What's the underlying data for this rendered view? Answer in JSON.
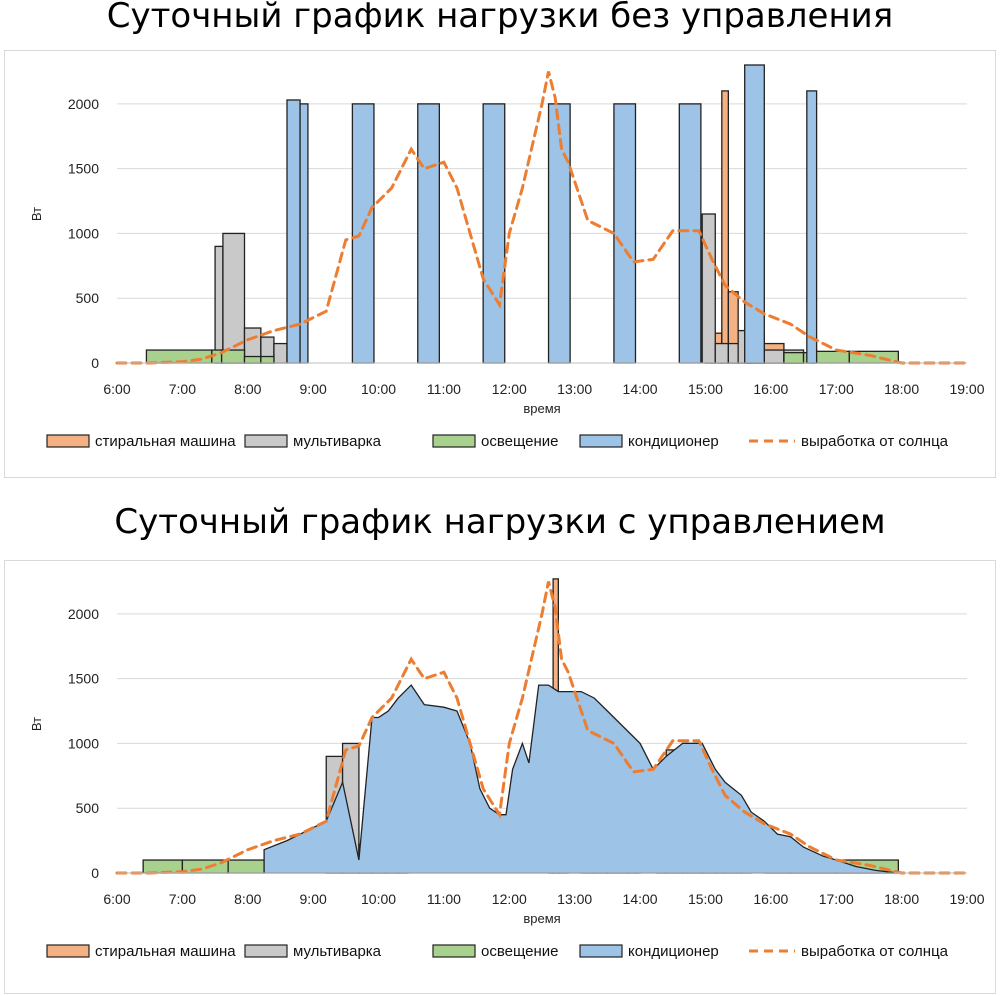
{
  "chart_data": [
    {
      "type": "area",
      "title": "Суточный график нагрузки без управления",
      "xlabel": "время",
      "ylabel": "Вт",
      "xlim": [
        6,
        19
      ],
      "ylim": [
        0,
        2300
      ],
      "x_ticks": [
        "6:00",
        "7:00",
        "8:00",
        "9:00",
        "10:00",
        "11:00",
        "12:00",
        "13:00",
        "14:00",
        "15:00",
        "16:00",
        "17:00",
        "18:00",
        "19:00"
      ],
      "y_ticks": [
        0,
        500,
        1000,
        1500,
        2000
      ],
      "legend_position": "bottom",
      "legend": [
        "стиральная машина",
        "мультиварка",
        "освещение",
        "кондиционер",
        "выработка от солнца"
      ],
      "series": [
        {
          "name": "стиральная машина",
          "color": "#f4b183",
          "steps": [
            [
              15,
              15.1,
              100
            ],
            [
              15.1,
              15.25,
              230
            ],
            [
              15.25,
              15.35,
              2100
            ],
            [
              15.35,
              15.5,
              550
            ],
            [
              15.5,
              15.67,
              250
            ],
            [
              15.67,
              15.9,
              120
            ],
            [
              15.9,
              16.2,
              150
            ],
            [
              16.2,
              16.5,
              80
            ]
          ]
        },
        {
          "name": "мультиварка",
          "color": "#c9c9c9",
          "steps": [
            [
              7.5,
              7.62,
              900
            ],
            [
              7.62,
              7.95,
              1000
            ],
            [
              7.95,
              8.2,
              270
            ],
            [
              8.2,
              8.4,
              200
            ],
            [
              8.4,
              8.6,
              150
            ],
            [
              14.95,
              15.15,
              1150
            ],
            [
              15.15,
              15.35,
              150
            ],
            [
              15.35,
              15.5,
              150
            ],
            [
              15.5,
              15.7,
              250
            ],
            [
              15.7,
              15.9,
              220
            ],
            [
              15.9,
              16.2,
              100
            ],
            [
              16.2,
              16.5,
              100
            ]
          ]
        },
        {
          "name": "освещение",
          "color": "#a9d18e",
          "steps": [
            [
              6.45,
              7.45,
              100
            ],
            [
              7.45,
              7.6,
              100
            ],
            [
              7.6,
              7.95,
              100
            ],
            [
              7.95,
              8.2,
              50
            ],
            [
              8.2,
              8.4,
              50
            ],
            [
              16.2,
              16.5,
              80
            ],
            [
              16.5,
              16.65,
              80
            ],
            [
              16.65,
              17.2,
              90
            ],
            [
              17.2,
              17.95,
              90
            ]
          ]
        },
        {
          "name": "кондиционер",
          "color": "#9dc3e6",
          "steps": [
            [
              8.6,
              8.8,
              2030
            ],
            [
              8.8,
              8.92,
              2000
            ],
            [
              9.6,
              9.93,
              2000
            ],
            [
              10.6,
              10.93,
              2000
            ],
            [
              11.6,
              11.93,
              2000
            ],
            [
              12.6,
              12.93,
              2000
            ],
            [
              13.6,
              13.93,
              2000
            ],
            [
              14.6,
              14.93,
              2000
            ],
            [
              15.6,
              15.9,
              2300
            ],
            [
              16.55,
              16.7,
              2100
            ]
          ]
        },
        {
          "name": "выработка от солнца",
          "color": "#ed7d31",
          "x": [
            6,
            6.5,
            7,
            7.3,
            7.6,
            8,
            8.4,
            8.8,
            9.2,
            9.5,
            9.7,
            9.9,
            10.2,
            10.5,
            10.7,
            11,
            11.2,
            11.4,
            11.6,
            11.85,
            12,
            12.2,
            12.5,
            12.6,
            12.7,
            12.8,
            12.9,
            13.2,
            13.6,
            13.9,
            14.2,
            14.5,
            14.9,
            15.1,
            15.3,
            15.6,
            15.9,
            16.3,
            16.6,
            17,
            17.5,
            18,
            18.5,
            19
          ],
          "y": [
            0,
            0,
            10,
            30,
            80,
            180,
            250,
            300,
            400,
            950,
            980,
            1200,
            1350,
            1650,
            1500,
            1550,
            1350,
            1000,
            650,
            450,
            1000,
            1350,
            2000,
            2250,
            2050,
            1650,
            1550,
            1100,
            1000,
            780,
            800,
            1020,
            1020,
            800,
            600,
            470,
            380,
            300,
            200,
            100,
            60,
            0,
            0,
            0
          ]
        }
      ]
    },
    {
      "type": "area",
      "title": "Суточный график нагрузки с управлением",
      "xlabel": "время",
      "ylabel": "Вт",
      "xlim": [
        6,
        19
      ],
      "ylim": [
        0,
        2300
      ],
      "x_ticks": [
        "6:00",
        "7:00",
        "8:00",
        "9:00",
        "10:00",
        "11:00",
        "12:00",
        "13:00",
        "14:00",
        "15:00",
        "16:00",
        "17:00",
        "18:00",
        "19:00"
      ],
      "y_ticks": [
        0,
        500,
        1000,
        1500,
        2000
      ],
      "legend_position": "bottom",
      "legend": [
        "стиральная машина",
        "мультиварка",
        "освещение",
        "кондиционер",
        "выработка от солнца"
      ],
      "series": [
        {
          "name": "стиральная машина",
          "color": "#f4b183",
          "steps": [
            [
              12.6,
              12.67,
              450
            ],
            [
              12.67,
              12.75,
              2270
            ],
            [
              12.75,
              12.9,
              450
            ],
            [
              12.9,
              13.1,
              0
            ],
            [
              13.1,
              13.3,
              150
            ],
            [
              13.3,
              13.5,
              110
            ],
            [
              13.5,
              13.8,
              120
            ],
            [
              13.8,
              13.95,
              150
            ],
            [
              13.95,
              14.0,
              100
            ]
          ]
        },
        {
          "name": "мультиварка",
          "color": "#c9c9c9",
          "steps": [
            [
              9.2,
              9.45,
              900
            ],
            [
              9.45,
              9.7,
              1000
            ],
            [
              9.7,
              9.9,
              220
            ],
            [
              9.9,
              10.1,
              200
            ],
            [
              10.1,
              10.3,
              220
            ],
            [
              10.3,
              10.45,
              50
            ],
            [
              14.25,
              14.4,
              20
            ],
            [
              14.4,
              14.65,
              950
            ],
            [
              14.65,
              14.95,
              1000
            ],
            [
              14.95,
              15.15,
              220
            ],
            [
              15.15,
              15.3,
              200
            ],
            [
              15.3,
              15.55,
              210
            ],
            [
              15.55,
              15.7,
              50
            ]
          ]
        },
        {
          "name": "освещение",
          "color": "#a9d18e",
          "steps": [
            [
              6.4,
              7.0,
              100
            ],
            [
              7.0,
              7.7,
              100
            ],
            [
              7.7,
              8.25,
              100
            ],
            [
              15.9,
              16.3,
              100
            ],
            [
              16.3,
              17.0,
              100
            ],
            [
              17.0,
              17.95,
              100
            ]
          ]
        },
        {
          "name": "кондиционер",
          "color": "#9dc3e6",
          "x": [
            8.25,
            8.6,
            9.0,
            9.2,
            9.45,
            9.7,
            9.9,
            10.0,
            10.15,
            10.3,
            10.5,
            10.7,
            11.0,
            11.2,
            11.4,
            11.55,
            11.7,
            11.85,
            11.95,
            12.05,
            12.2,
            12.3,
            12.45,
            12.6,
            12.75,
            12.9,
            13.1,
            13.3,
            13.5,
            13.7,
            14.0,
            14.2,
            14.4,
            14.65,
            14.95,
            15.15,
            15.3,
            15.55,
            15.7,
            15.9,
            16.1,
            16.3,
            16.5,
            16.8,
            17.0,
            17.3,
            17.6,
            17.95
          ],
          "y": [
            180,
            250,
            350,
            400,
            700,
            100,
            1200,
            1200,
            1250,
            1350,
            1450,
            1300,
            1280,
            1250,
            1000,
            650,
            500,
            450,
            450,
            800,
            1000,
            850,
            1450,
            1450,
            1400,
            1400,
            1400,
            1350,
            1250,
            1150,
            1000,
            800,
            900,
            1000,
            1000,
            800,
            700,
            600,
            470,
            400,
            300,
            280,
            200,
            130,
            100,
            50,
            20,
            0
          ]
        },
        {
          "name": "выработка от солнца",
          "color": "#ed7d31",
          "x": [
            6,
            6.5,
            7,
            7.3,
            7.6,
            8,
            8.4,
            8.8,
            9.2,
            9.5,
            9.7,
            9.9,
            10.2,
            10.5,
            10.7,
            11,
            11.2,
            11.4,
            11.6,
            11.85,
            12,
            12.2,
            12.5,
            12.6,
            12.7,
            12.8,
            12.9,
            13.2,
            13.6,
            13.9,
            14.2,
            14.5,
            14.9,
            15.1,
            15.3,
            15.6,
            15.9,
            16.3,
            16.6,
            17,
            17.5,
            18,
            18.5,
            19
          ],
          "y": [
            0,
            0,
            10,
            30,
            80,
            180,
            250,
            300,
            400,
            950,
            980,
            1200,
            1350,
            1650,
            1500,
            1550,
            1350,
            1000,
            650,
            450,
            1000,
            1350,
            2000,
            2250,
            2050,
            1650,
            1550,
            1100,
            1000,
            780,
            800,
            1020,
            1020,
            800,
            600,
            470,
            380,
            300,
            200,
            100,
            60,
            0,
            0,
            0
          ]
        }
      ]
    }
  ]
}
